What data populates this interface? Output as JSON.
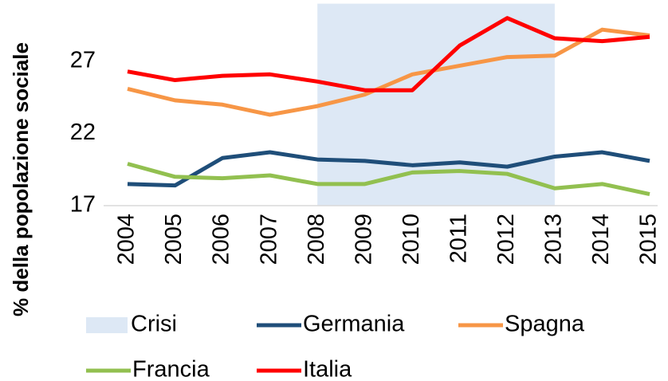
{
  "chart_data": {
    "type": "line",
    "y_label": "% della popolazione sociale",
    "categories": [
      "2004",
      "2005",
      "2006",
      "2007",
      "2008",
      "2009",
      "2010",
      "2011",
      "2012",
      "2013",
      "2014",
      "2015"
    ],
    "shade": {
      "name": "Crisi",
      "color": "#dde8f5",
      "start": "2008",
      "end": "2013"
    },
    "series": [
      {
        "name": "Germania",
        "color": "#1f4e79",
        "values": [
          18.5,
          18.4,
          20.3,
          20.7,
          20.2,
          20.1,
          19.8,
          20.0,
          19.7,
          20.4,
          20.7,
          20.1
        ]
      },
      {
        "name": "Spagna",
        "color": "#f79646",
        "values": [
          25.1,
          24.3,
          24.0,
          23.3,
          23.9,
          24.7,
          26.1,
          26.7,
          27.3,
          27.4,
          29.2,
          28.8
        ]
      },
      {
        "name": "Francia",
        "color": "#92c050",
        "values": [
          19.9,
          19.0,
          18.9,
          19.1,
          18.5,
          18.5,
          19.3,
          19.4,
          19.2,
          18.2,
          18.5,
          17.8
        ]
      },
      {
        "name": "Italia",
        "color": "#ff0000",
        "values": [
          26.3,
          25.7,
          26.0,
          26.1,
          25.6,
          25.0,
          25.0,
          28.1,
          30.0,
          28.6,
          28.4,
          28.7
        ]
      }
    ],
    "ylim": [
      17,
      31
    ],
    "yticks": [
      17,
      22,
      27
    ],
    "grid": false
  }
}
